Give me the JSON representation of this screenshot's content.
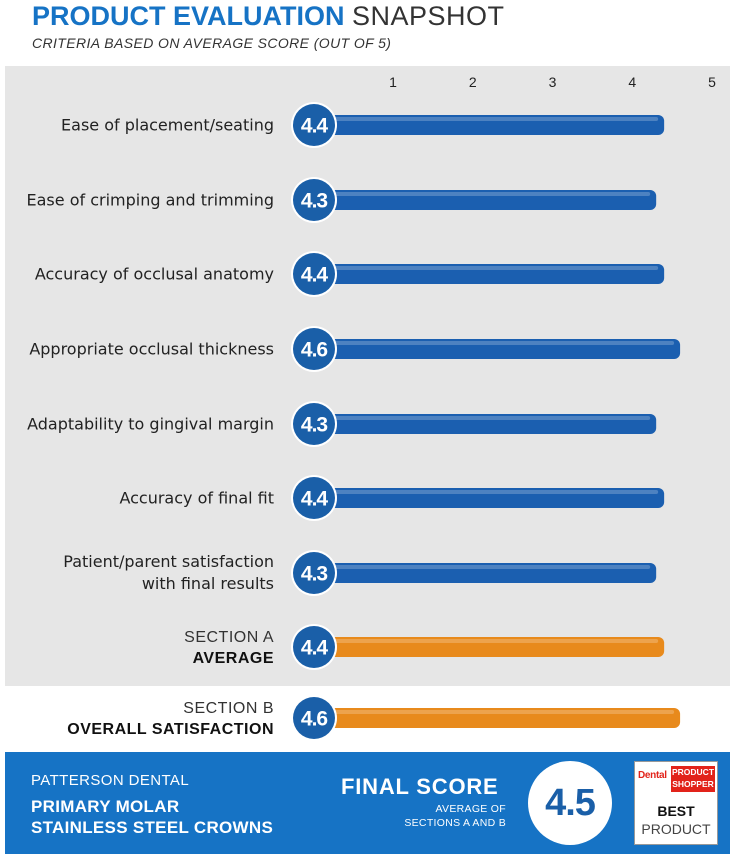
{
  "header": {
    "title_bold": "PRODUCT EVALUATION",
    "title_light": "SNAPSHOT",
    "subtitle": "CRITERIA BASED ON AVERAGE SCORE (OUT OF 5)"
  },
  "colors": {
    "title_blue": "#1673c5",
    "bar_blue": "#1b5fb0",
    "bar_orange": "#e88a1c",
    "circle_blue": "#1a5fa8",
    "panel_gray": "#e6e6e6",
    "footer_blue": "#1673c5",
    "badge_red": "#e2231a"
  },
  "chart_data": {
    "type": "bar",
    "orientation": "horizontal",
    "x_ticks": [
      "1",
      "2",
      "3",
      "4",
      "5"
    ],
    "xlim": [
      0,
      5
    ],
    "categories": [
      [
        "Ease of placement/seating"
      ],
      [
        "Ease of crimping and trimming"
      ],
      [
        "Accuracy of occlusal anatomy"
      ],
      [
        "Appropriate occlusal thickness"
      ],
      [
        "Adaptability to gingival margin"
      ],
      [
        "Accuracy of final fit"
      ],
      [
        "Patient/parent satisfaction",
        "with final results"
      ]
    ],
    "values": [
      4.4,
      4.3,
      4.4,
      4.6,
      4.3,
      4.4,
      4.3
    ],
    "value_labels": [
      "4.4",
      "4.3",
      "4.4",
      "4.6",
      "4.3",
      "4.4",
      "4.3"
    ],
    "summary": [
      {
        "line1": "SECTION A",
        "line2": "AVERAGE",
        "value": 4.4,
        "label": "4.4"
      },
      {
        "line1": "SECTION B",
        "line2": "OVERALL SATISFACTION",
        "value": 4.6,
        "label": "4.6"
      }
    ]
  },
  "footer": {
    "company": "PATTERSON DENTAL",
    "product_line1": "PRIMARY MOLAR",
    "product_line2": "STAINLESS STEEL CROWNS",
    "final_score_label": "FINAL SCORE",
    "final_sub_line1": "AVERAGE OF",
    "final_sub_line2": "SECTIONS A AND B",
    "final_score": "4.5",
    "badge_dental": "Dental",
    "badge_ps_line1": "PRODUCT",
    "badge_ps_line2": "SHOPPER",
    "badge_best": "BEST",
    "badge_product": "PRODUCT"
  }
}
